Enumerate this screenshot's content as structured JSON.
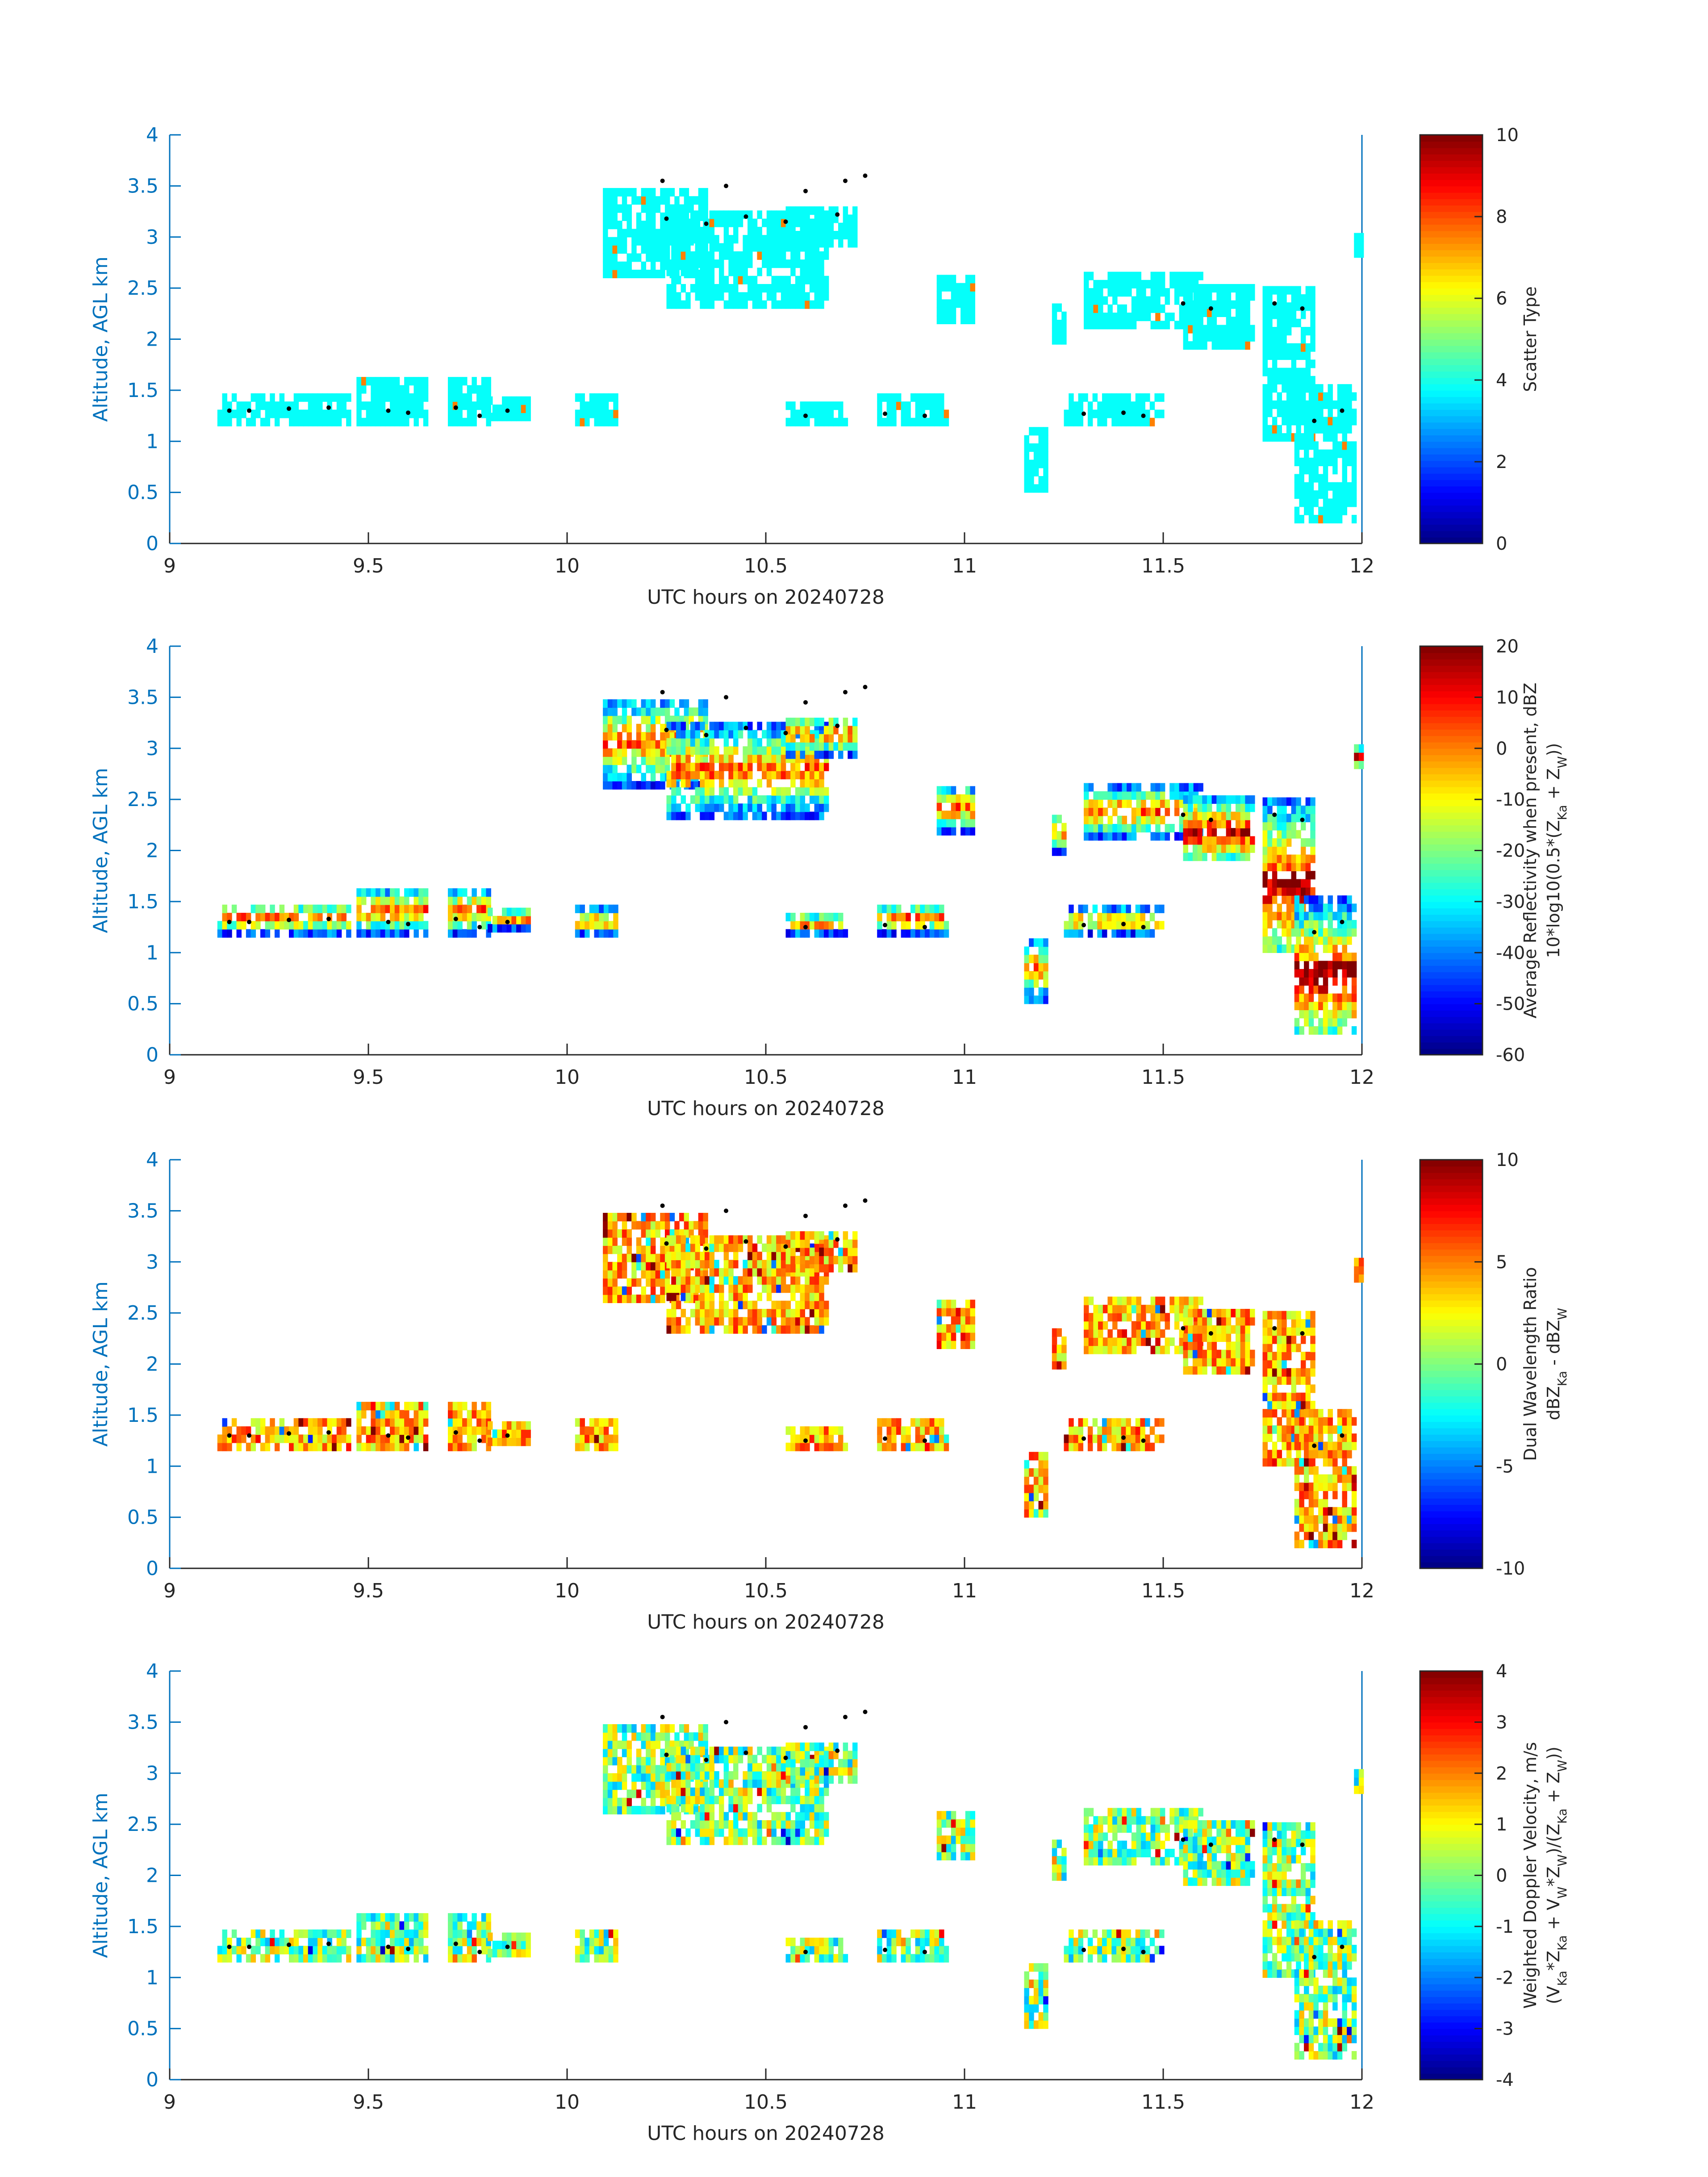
{
  "chart_data": [
    {
      "type": "heatmap",
      "xlabel": "UTC hours on 20240728",
      "ylabel": "Altitude, AGL km",
      "xlim": [
        9,
        12
      ],
      "ylim": [
        0,
        4
      ],
      "xticks": [
        "9",
        "9.5",
        "10",
        "10.5",
        "11",
        "11.5",
        "12"
      ],
      "yticks": [
        "0",
        "0.5",
        "1",
        "1.5",
        "2",
        "2.5",
        "3",
        "3.5",
        "4"
      ],
      "colorbar": {
        "label_lines": [
          "Scatter Type"
        ],
        "range": [
          0,
          10
        ],
        "ticks": [
          "0",
          "2",
          "4",
          "6",
          "8",
          "10"
        ]
      },
      "colormap": "jet",
      "mode": "scatter",
      "grid": false
    },
    {
      "type": "heatmap",
      "xlabel": "UTC hours on 20240728",
      "ylabel": "Altitude, AGL km",
      "xlim": [
        9,
        12
      ],
      "ylim": [
        0,
        4
      ],
      "xticks": [
        "9",
        "9.5",
        "10",
        "10.5",
        "11",
        "11.5",
        "12"
      ],
      "yticks": [
        "0",
        "0.5",
        "1",
        "1.5",
        "2",
        "2.5",
        "3",
        "3.5",
        "4"
      ],
      "colorbar": {
        "label_lines": [
          "Average Reflectivity when present, dBZ",
          "10*log10(0.5*(Z_Ka + Z_W))"
        ],
        "range": [
          -60,
          20
        ],
        "ticks": [
          "-60",
          "-50",
          "-40",
          "-30",
          "-20",
          "-10",
          "0",
          "10",
          "20"
        ]
      },
      "colormap": "jet",
      "mode": "refl",
      "grid": false
    },
    {
      "type": "heatmap",
      "xlabel": "UTC hours on 20240728",
      "ylabel": "Altitude, AGL km",
      "xlim": [
        9,
        12
      ],
      "ylim": [
        0,
        4
      ],
      "xticks": [
        "9",
        "9.5",
        "10",
        "10.5",
        "11",
        "11.5",
        "12"
      ],
      "yticks": [
        "0",
        "0.5",
        "1",
        "1.5",
        "2",
        "2.5",
        "3",
        "3.5",
        "4"
      ],
      "colorbar": {
        "label_lines": [
          "Dual Wavelength Ratio",
          "dBZ_Ka - dBZ_W"
        ],
        "range": [
          -10,
          10
        ],
        "ticks": [
          "-10",
          "-5",
          "0",
          "5",
          "10"
        ]
      },
      "colormap": "jet",
      "mode": "dwr",
      "grid": false
    },
    {
      "type": "heatmap",
      "xlabel": "UTC hours on 20240728",
      "ylabel": "Altitude, AGL km",
      "xlim": [
        9,
        12
      ],
      "ylim": [
        0,
        4
      ],
      "xticks": [
        "9",
        "9.5",
        "10",
        "10.5",
        "11",
        "11.5",
        "12"
      ],
      "yticks": [
        "0",
        "0.5",
        "1",
        "1.5",
        "2",
        "2.5",
        "3",
        "3.5",
        "4"
      ],
      "colorbar": {
        "label_lines": [
          "Weighted Doppler Velocity, m/s",
          "(V_Ka*Z_Ka + V_W*Z_W)/(Z_Ka + Z_W))"
        ],
        "range": [
          -4,
          4
        ],
        "ticks": [
          "-4",
          "-3",
          "-2",
          "-1",
          "0",
          "1",
          "2",
          "3",
          "4"
        ]
      },
      "colormap": "jet",
      "mode": "vel",
      "grid": false
    }
  ],
  "cloud_regions": [
    {
      "x": [
        9.12,
        9.45
      ],
      "y": [
        1.15,
        1.45
      ]
    },
    {
      "x": [
        9.47,
        9.65
      ],
      "y": [
        1.15,
        1.6
      ]
    },
    {
      "x": [
        9.7,
        9.8
      ],
      "y": [
        1.15,
        1.6
      ]
    },
    {
      "x": [
        9.8,
        9.9
      ],
      "y": [
        1.2,
        1.4
      ]
    },
    {
      "x": [
        10.02,
        10.12
      ],
      "y": [
        1.15,
        1.4
      ]
    },
    {
      "x": [
        10.09,
        10.35
      ],
      "y": [
        2.6,
        3.45
      ]
    },
    {
      "x": [
        10.25,
        10.65
      ],
      "y": [
        2.3,
        3.2
      ]
    },
    {
      "x": [
        10.55,
        10.72
      ],
      "y": [
        2.9,
        3.3
      ]
    },
    {
      "x": [
        10.55,
        10.7
      ],
      "y": [
        1.15,
        1.35
      ]
    },
    {
      "x": [
        10.78,
        10.95
      ],
      "y": [
        1.15,
        1.45
      ]
    },
    {
      "x": [
        10.93,
        11.02
      ],
      "y": [
        2.15,
        2.6
      ]
    },
    {
      "x": [
        11.15,
        11.2
      ],
      "y": [
        0.5,
        1.1
      ]
    },
    {
      "x": [
        11.22,
        11.25
      ],
      "y": [
        1.95,
        2.35
      ]
    },
    {
      "x": [
        11.25,
        11.5
      ],
      "y": [
        1.15,
        1.4
      ]
    },
    {
      "x": [
        11.3,
        11.6
      ],
      "y": [
        2.1,
        2.6
      ]
    },
    {
      "x": [
        11.55,
        11.72
      ],
      "y": [
        1.9,
        2.5
      ]
    },
    {
      "x": [
        11.75,
        11.88
      ],
      "y": [
        1.0,
        2.5
      ]
    },
    {
      "x": [
        11.83,
        11.98
      ],
      "y": [
        0.2,
        1.5
      ]
    },
    {
      "x": [
        11.98,
        12.0
      ],
      "y": [
        2.8,
        3.0
      ]
    }
  ],
  "cloud_top_dots": [
    [
      9.15,
      1.3
    ],
    [
      9.2,
      1.3
    ],
    [
      9.3,
      1.32
    ],
    [
      9.4,
      1.33
    ],
    [
      9.55,
      1.3
    ],
    [
      9.6,
      1.28
    ],
    [
      9.72,
      1.33
    ],
    [
      9.78,
      1.25
    ],
    [
      9.85,
      1.3
    ],
    [
      10.25,
      3.18
    ],
    [
      10.35,
      3.13
    ],
    [
      10.45,
      3.2
    ],
    [
      10.55,
      3.15
    ],
    [
      10.68,
      3.22
    ],
    [
      10.6,
      1.25
    ],
    [
      10.8,
      1.27
    ],
    [
      10.9,
      1.25
    ],
    [
      11.3,
      1.27
    ],
    [
      11.4,
      1.28
    ],
    [
      11.45,
      1.25
    ],
    [
      11.55,
      2.35
    ],
    [
      11.62,
      2.3
    ],
    [
      11.78,
      2.35
    ],
    [
      11.85,
      2.3
    ],
    [
      11.88,
      1.2
    ],
    [
      11.95,
      1.3
    ],
    [
      10.24,
      3.55
    ],
    [
      10.4,
      3.5
    ],
    [
      10.6,
      3.45
    ],
    [
      10.7,
      3.55
    ],
    [
      10.75,
      3.6
    ]
  ]
}
